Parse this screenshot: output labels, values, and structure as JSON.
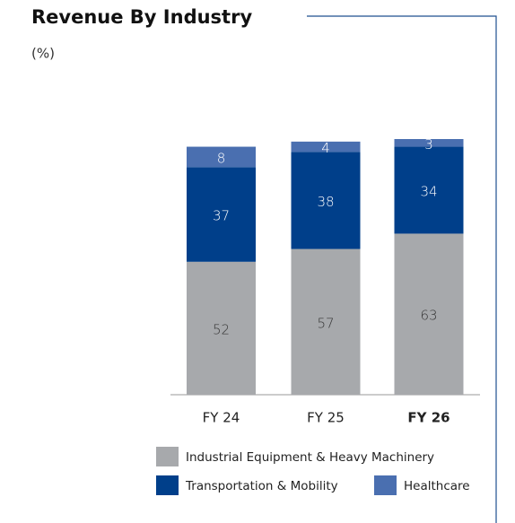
{
  "chart_data": {
    "type": "stacked_bar",
    "title": "Revenue By Industry",
    "subtitle": "(%)",
    "categories": [
      "FY 24",
      "FY 25",
      "FY 26"
    ],
    "series": [
      {
        "name": "Industrial Equipment & Heavy Machinery",
        "color": "#a7a9ac",
        "values": [
          52,
          57,
          63
        ]
      },
      {
        "name": "Transportation & Mobility",
        "color": "#003f8a",
        "values": [
          37,
          38,
          34
        ]
      },
      {
        "name": "Healthcare",
        "color": "#4a6fb0",
        "values": [
          8,
          4,
          3
        ]
      }
    ],
    "ylim": [
      0,
      100
    ]
  }
}
